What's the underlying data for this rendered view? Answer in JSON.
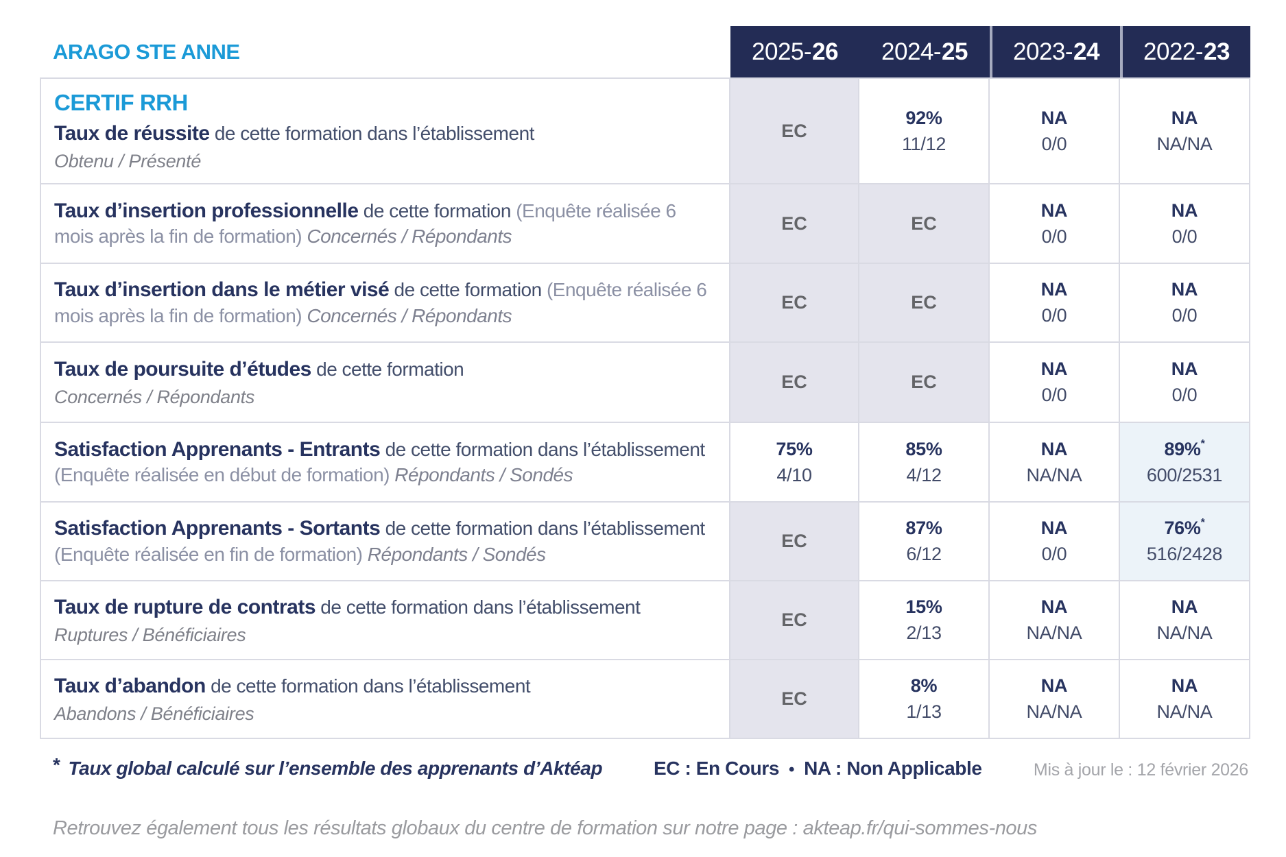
{
  "page": {
    "org_title": "ARAGO STE ANNE",
    "course_title": "CERTIF RRH"
  },
  "header": {
    "cols": [
      {
        "pre": "2025-",
        "bold": "26"
      },
      {
        "pre": "2024-",
        "bold": "25"
      },
      {
        "pre": "2023-",
        "bold": "24"
      },
      {
        "pre": "2022-",
        "bold": "23"
      }
    ]
  },
  "table": {
    "rows": [
      {
        "title": "Taux de réussite",
        "rest": " de cette formation dans l’établissement",
        "paren": "",
        "tail": "",
        "sub": "Obtenu / Présenté",
        "cells": [
          {
            "value": "EC",
            "sub": "",
            "star": ""
          },
          {
            "value": "92%",
            "sub": "11/12",
            "star": ""
          },
          {
            "value": "NA",
            "sub": "0/0",
            "star": ""
          },
          {
            "value": "NA",
            "sub": "NA/NA",
            "star": ""
          }
        ]
      },
      {
        "title": "Taux d’insertion professionnelle",
        "rest": " de cette formation ",
        "paren": "(Enquête réalisée 6 mois après la fin de formation) ",
        "tail": "Concernés / Répondants",
        "sub": "",
        "cells": [
          {
            "value": "EC",
            "sub": "",
            "star": ""
          },
          {
            "value": "EC",
            "sub": "",
            "star": ""
          },
          {
            "value": "NA",
            "sub": "0/0",
            "star": ""
          },
          {
            "value": "NA",
            "sub": "0/0",
            "star": ""
          }
        ]
      },
      {
        "title": "Taux d’insertion dans le métier visé",
        "rest": " de cette formation ",
        "paren": "(Enquête réalisée 6 mois après la fin de formation) ",
        "tail": "Concernés / Répondants",
        "sub": "",
        "cells": [
          {
            "value": "EC",
            "sub": "",
            "star": ""
          },
          {
            "value": "EC",
            "sub": "",
            "star": ""
          },
          {
            "value": "NA",
            "sub": "0/0",
            "star": ""
          },
          {
            "value": "NA",
            "sub": "0/0",
            "star": ""
          }
        ]
      },
      {
        "title": "Taux de poursuite d’études",
        "rest": " de cette formation",
        "paren": "",
        "tail": "",
        "sub": "Concernés / Répondants",
        "cells": [
          {
            "value": "EC",
            "sub": "",
            "star": ""
          },
          {
            "value": "EC",
            "sub": "",
            "star": ""
          },
          {
            "value": "NA",
            "sub": "0/0",
            "star": ""
          },
          {
            "value": "NA",
            "sub": "0/0",
            "star": ""
          }
        ]
      },
      {
        "title": "Satisfaction Apprenants - Entrants",
        "rest": " de cette formation dans l’établissement ",
        "paren": "(Enquête réalisée en début de formation) ",
        "tail": "Répondants / Sondés",
        "sub": "",
        "cells": [
          {
            "value": "75%",
            "sub": "4/10",
            "star": ""
          },
          {
            "value": "85%",
            "sub": "4/12",
            "star": ""
          },
          {
            "value": "NA",
            "sub": "NA/NA",
            "star": ""
          },
          {
            "value": "89%",
            "sub": "600/2531",
            "star": "*"
          }
        ]
      },
      {
        "title": "Satisfaction Apprenants - Sortants",
        "rest": " de cette formation dans l’établissement ",
        "paren": "(Enquête réalisée en fin de formation) ",
        "tail": "Répondants / Sondés",
        "sub": "",
        "cells": [
          {
            "value": "EC",
            "sub": "",
            "star": ""
          },
          {
            "value": "87%",
            "sub": "6/12",
            "star": ""
          },
          {
            "value": "NA",
            "sub": "0/0",
            "star": ""
          },
          {
            "value": "76%",
            "sub": "516/2428",
            "star": "*"
          }
        ]
      },
      {
        "title": "Taux de rupture de contrats",
        "rest": " de cette formation dans l’établissement",
        "paren": "",
        "tail": "",
        "sub": "Ruptures / Bénéficiaires",
        "cells": [
          {
            "value": "EC",
            "sub": "",
            "star": ""
          },
          {
            "value": "15%",
            "sub": "2/13",
            "star": ""
          },
          {
            "value": "NA",
            "sub": "NA/NA",
            "star": ""
          },
          {
            "value": "NA",
            "sub": "NA/NA",
            "star": ""
          }
        ]
      },
      {
        "title": "Taux d’abandon",
        "rest": " de cette formation dans l’établissement",
        "paren": "",
        "tail": "",
        "sub": "Abandons / Bénéficiaires",
        "cells": [
          {
            "value": "EC",
            "sub": "",
            "star": ""
          },
          {
            "value": "8%",
            "sub": "1/13",
            "star": ""
          },
          {
            "value": "NA",
            "sub": "NA/NA",
            "star": ""
          },
          {
            "value": "NA",
            "sub": "NA/NA",
            "star": ""
          }
        ]
      }
    ]
  },
  "footer": {
    "star": "*",
    "note": "Taux global calculé sur l’ensemble des apprenants d’Aktéap",
    "legend_ec": "EC : En Cours",
    "bullet": "•",
    "legend_na": "NA : Non Applicable",
    "updated": "Mis à jour le : 12 février 2026",
    "bottom_line": "Retrouvez également tous les résultats globaux du centre de formation sur notre page : akteap.fr/qui-sommes-nous"
  },
  "colors": {
    "brand_blue": "#1b9ad7",
    "header_navy": "#232c55",
    "title_navy": "#27335f",
    "lavender_cell": "#e4e4ed",
    "highlight_cell": "#ecf3f9",
    "border": "#d9dae3"
  }
}
